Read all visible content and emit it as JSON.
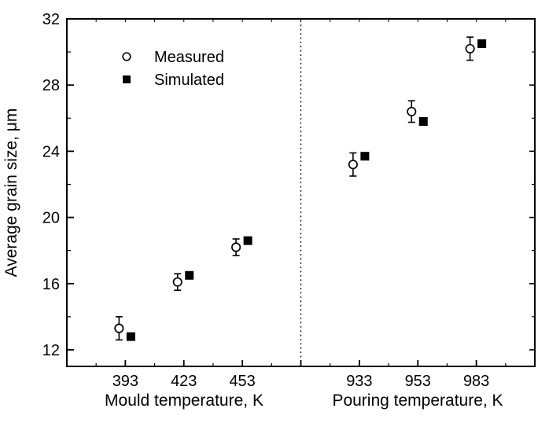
{
  "chart_data": {
    "type": "scatter",
    "title": "",
    "ylabel": "Average grain size, μm",
    "ylim": [
      11,
      32
    ],
    "yticks": [
      12,
      16,
      20,
      24,
      28,
      32
    ],
    "y_minor_step": 2,
    "grid": false,
    "legend_position": "upper-left-inside",
    "separator_line": "dotted-vertical-between-groups",
    "colors": {
      "foreground": "#000000",
      "background": "#ffffff"
    },
    "legend": [
      {
        "label": "Measured",
        "marker": "open-circle"
      },
      {
        "label": "Simulated",
        "marker": "filled-square"
      }
    ],
    "groups": [
      {
        "xlabel": "Mould temperature, K",
        "categories": [
          "393",
          "423",
          "453"
        ],
        "series": [
          {
            "name": "Measured",
            "marker": "open-circle",
            "values": [
              13.3,
              16.1,
              18.2
            ],
            "errors": [
              0.7,
              0.5,
              0.5
            ]
          },
          {
            "name": "Simulated",
            "marker": "filled-square",
            "values": [
              12.8,
              16.5,
              18.6
            ],
            "errors": null
          }
        ]
      },
      {
        "xlabel": "Pouring temperature, K",
        "categories": [
          "933",
          "953",
          "983"
        ],
        "series": [
          {
            "name": "Measured",
            "marker": "open-circle",
            "values": [
              23.2,
              26.4,
              30.2
            ],
            "errors": [
              0.7,
              0.65,
              0.7
            ]
          },
          {
            "name": "Simulated",
            "marker": "filled-square",
            "values": [
              23.7,
              25.8,
              30.5
            ],
            "errors": null
          }
        ]
      }
    ]
  }
}
